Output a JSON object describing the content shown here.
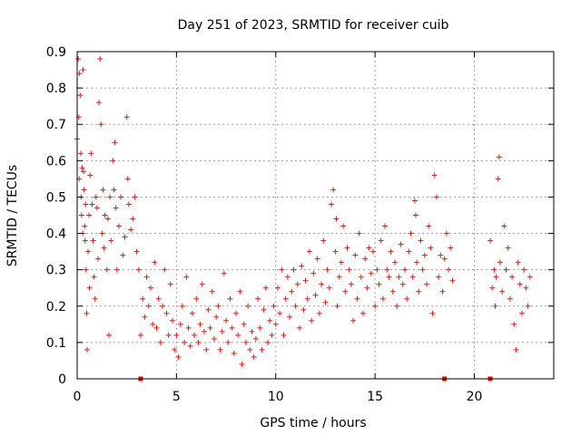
{
  "colors": {
    "points": "#ee1111",
    "gap_markers": "#dd0000",
    "grid": "#a0a0a0",
    "frame": "#000000"
  },
  "chart_data": {
    "type": "scatter",
    "title": "Day 251 of 2023, SRMTID for receiver cuib",
    "xlabel": "GPS time / hours",
    "ylabel": "SRMTID / TECUs",
    "xlim": [
      0,
      24
    ],
    "ylim": [
      0,
      0.9
    ],
    "xticks": [
      0,
      5,
      10,
      15,
      20
    ],
    "xtick_labels": [
      "0",
      "5",
      "10",
      "15",
      "20"
    ],
    "yticks": [
      0,
      0.1,
      0.2,
      0.3,
      0.4,
      0.5,
      0.6,
      0.7,
      0.8,
      0.9
    ],
    "ytick_labels": [
      "0",
      "0.1",
      "0.2",
      "0.3",
      "0.4",
      "0.5",
      "0.6",
      "0.7",
      "0.8",
      "0.9"
    ],
    "grid": true,
    "marker": "plus",
    "gap_markers_x": [
      3.2,
      18.5,
      20.8
    ],
    "series": [
      {
        "name": "SRMTID",
        "points": [
          [
            0.0,
            0.66
          ],
          [
            0.05,
            0.88
          ],
          [
            0.08,
            0.72
          ],
          [
            0.1,
            0.55
          ],
          [
            0.12,
            0.84
          ],
          [
            0.15,
            0.78
          ],
          [
            0.18,
            0.62
          ],
          [
            0.2,
            0.5
          ],
          [
            0.22,
            0.45
          ],
          [
            0.25,
            0.58
          ],
          [
            0.28,
            0.4
          ],
          [
            0.3,
            0.85
          ],
          [
            0.32,
            0.57
          ],
          [
            0.35,
            0.52
          ],
          [
            0.38,
            0.42
          ],
          [
            0.4,
            0.38
          ],
          [
            0.42,
            0.48
          ],
          [
            0.45,
            0.3
          ],
          [
            0.48,
            0.18
          ],
          [
            0.5,
            0.08
          ],
          [
            0.55,
            0.35
          ],
          [
            0.6,
            0.45
          ],
          [
            0.62,
            0.25
          ],
          [
            0.65,
            0.56
          ],
          [
            0.7,
            0.62
          ],
          [
            0.75,
            0.48
          ],
          [
            0.8,
            0.38
          ],
          [
            0.85,
            0.28
          ],
          [
            0.9,
            0.22
          ],
          [
            0.95,
            0.5
          ],
          [
            1.0,
            0.47
          ],
          [
            1.05,
            0.33
          ],
          [
            1.1,
            0.76
          ],
          [
            1.15,
            0.88
          ],
          [
            1.2,
            0.7
          ],
          [
            1.25,
            0.4
          ],
          [
            1.3,
            0.52
          ],
          [
            1.35,
            0.36
          ],
          [
            1.4,
            0.45
          ],
          [
            1.5,
            0.3
          ],
          [
            1.55,
            0.44
          ],
          [
            1.6,
            0.12
          ],
          [
            1.65,
            0.5
          ],
          [
            1.7,
            0.38
          ],
          [
            1.8,
            0.6
          ],
          [
            1.85,
            0.52
          ],
          [
            1.9,
            0.65
          ],
          [
            1.95,
            0.47
          ],
          [
            2.0,
            0.3
          ],
          [
            2.1,
            0.42
          ],
          [
            2.2,
            0.5
          ],
          [
            2.3,
            0.34
          ],
          [
            2.4,
            0.39
          ],
          [
            2.5,
            0.72
          ],
          [
            2.55,
            0.55
          ],
          [
            2.6,
            0.48
          ],
          [
            2.7,
            0.41
          ],
          [
            2.8,
            0.44
          ],
          [
            2.9,
            0.5
          ],
          [
            3.0,
            0.35
          ],
          [
            3.1,
            0.3
          ],
          [
            3.2,
            0.12
          ],
          [
            3.3,
            0.22
          ],
          [
            3.4,
            0.17
          ],
          [
            3.5,
            0.28
          ],
          [
            3.6,
            0.2
          ],
          [
            3.7,
            0.25
          ],
          [
            3.8,
            0.15
          ],
          [
            3.9,
            0.32
          ],
          [
            4.0,
            0.14
          ],
          [
            4.1,
            0.22
          ],
          [
            4.2,
            0.1
          ],
          [
            4.3,
            0.2
          ],
          [
            4.4,
            0.3
          ],
          [
            4.5,
            0.18
          ],
          [
            4.6,
            0.12
          ],
          [
            4.7,
            0.26
          ],
          [
            4.8,
            0.16
          ],
          [
            4.9,
            0.08
          ],
          [
            5.0,
            0.12
          ],
          [
            5.1,
            0.06
          ],
          [
            5.2,
            0.15
          ],
          [
            5.3,
            0.2
          ],
          [
            5.4,
            0.1
          ],
          [
            5.5,
            0.28
          ],
          [
            5.6,
            0.14
          ],
          [
            5.7,
            0.09
          ],
          [
            5.8,
            0.18
          ],
          [
            5.9,
            0.12
          ],
          [
            6.0,
            0.22
          ],
          [
            6.1,
            0.1
          ],
          [
            6.2,
            0.15
          ],
          [
            6.3,
            0.26
          ],
          [
            6.4,
            0.13
          ],
          [
            6.5,
            0.08
          ],
          [
            6.6,
            0.19
          ],
          [
            6.7,
            0.14
          ],
          [
            6.8,
            0.24
          ],
          [
            6.9,
            0.11
          ],
          [
            7.0,
            0.17
          ],
          [
            7.1,
            0.2
          ],
          [
            7.2,
            0.08
          ],
          [
            7.3,
            0.13
          ],
          [
            7.4,
            0.29
          ],
          [
            7.5,
            0.16
          ],
          [
            7.6,
            0.1
          ],
          [
            7.7,
            0.22
          ],
          [
            7.8,
            0.14
          ],
          [
            7.9,
            0.07
          ],
          [
            8.0,
            0.18
          ],
          [
            8.1,
            0.12
          ],
          [
            8.2,
            0.24
          ],
          [
            8.3,
            0.04
          ],
          [
            8.4,
            0.15
          ],
          [
            8.5,
            0.1
          ],
          [
            8.6,
            0.2
          ],
          [
            8.7,
            0.08
          ],
          [
            8.8,
            0.13
          ],
          [
            8.9,
            0.06
          ],
          [
            9.0,
            0.11
          ],
          [
            9.1,
            0.22
          ],
          [
            9.2,
            0.14
          ],
          [
            9.3,
            0.08
          ],
          [
            9.4,
            0.19
          ],
          [
            9.5,
            0.25
          ],
          [
            9.6,
            0.1
          ],
          [
            9.7,
            0.16
          ],
          [
            9.8,
            0.12
          ],
          [
            9.9,
            0.2
          ],
          [
            10.0,
            0.15
          ],
          [
            10.1,
            0.25
          ],
          [
            10.2,
            0.18
          ],
          [
            10.3,
            0.3
          ],
          [
            10.4,
            0.12
          ],
          [
            10.5,
            0.22
          ],
          [
            10.6,
            0.28
          ],
          [
            10.7,
            0.17
          ],
          [
            10.8,
            0.24
          ],
          [
            10.9,
            0.3
          ],
          [
            11.0,
            0.2
          ],
          [
            11.1,
            0.26
          ],
          [
            11.2,
            0.14
          ],
          [
            11.3,
            0.31
          ],
          [
            11.4,
            0.19
          ],
          [
            11.5,
            0.27
          ],
          [
            11.6,
            0.22
          ],
          [
            11.7,
            0.35
          ],
          [
            11.8,
            0.16
          ],
          [
            11.9,
            0.29
          ],
          [
            12.0,
            0.23
          ],
          [
            12.1,
            0.33
          ],
          [
            12.2,
            0.18
          ],
          [
            12.3,
            0.26
          ],
          [
            12.4,
            0.38
          ],
          [
            12.5,
            0.21
          ],
          [
            12.6,
            0.3
          ],
          [
            12.7,
            0.25
          ],
          [
            12.8,
            0.48
          ],
          [
            12.9,
            0.52
          ],
          [
            13.0,
            0.35
          ],
          [
            13.05,
            0.44
          ],
          [
            13.1,
            0.2
          ],
          [
            13.2,
            0.28
          ],
          [
            13.3,
            0.32
          ],
          [
            13.4,
            0.42
          ],
          [
            13.5,
            0.24
          ],
          [
            13.6,
            0.36
          ],
          [
            13.7,
            0.3
          ],
          [
            13.8,
            0.26
          ],
          [
            13.9,
            0.16
          ],
          [
            14.0,
            0.34
          ],
          [
            14.1,
            0.22
          ],
          [
            14.2,
            0.4
          ],
          [
            14.3,
            0.28
          ],
          [
            14.4,
            0.18
          ],
          [
            14.5,
            0.33
          ],
          [
            14.6,
            0.25
          ],
          [
            14.7,
            0.36
          ],
          [
            14.8,
            0.29
          ],
          [
            14.9,
            0.35
          ],
          [
            15.0,
            0.2
          ],
          [
            15.1,
            0.3
          ],
          [
            15.2,
            0.26
          ],
          [
            15.3,
            0.38
          ],
          [
            15.4,
            0.22
          ],
          [
            15.5,
            0.42
          ],
          [
            15.6,
            0.3
          ],
          [
            15.7,
            0.28
          ],
          [
            15.8,
            0.35
          ],
          [
            15.9,
            0.24
          ],
          [
            16.0,
            0.32
          ],
          [
            16.1,
            0.2
          ],
          [
            16.2,
            0.28
          ],
          [
            16.3,
            0.37
          ],
          [
            16.4,
            0.26
          ],
          [
            16.5,
            0.3
          ],
          [
            16.6,
            0.22
          ],
          [
            16.7,
            0.35
          ],
          [
            16.8,
            0.4
          ],
          [
            16.9,
            0.28
          ],
          [
            17.0,
            0.49
          ],
          [
            17.05,
            0.45
          ],
          [
            17.1,
            0.32
          ],
          [
            17.2,
            0.24
          ],
          [
            17.3,
            0.38
          ],
          [
            17.4,
            0.3
          ],
          [
            17.5,
            0.34
          ],
          [
            17.6,
            0.26
          ],
          [
            17.7,
            0.42
          ],
          [
            17.8,
            0.36
          ],
          [
            17.9,
            0.18
          ],
          [
            18.0,
            0.56
          ],
          [
            18.1,
            0.5
          ],
          [
            18.2,
            0.28
          ],
          [
            18.3,
            0.34
          ],
          [
            18.4,
            0.24
          ],
          [
            18.5,
            0.33
          ],
          [
            18.6,
            0.4
          ],
          [
            18.7,
            0.3
          ],
          [
            18.8,
            0.36
          ],
          [
            18.9,
            0.27
          ],
          [
            20.8,
            0.38
          ],
          [
            20.9,
            0.25
          ],
          [
            21.0,
            0.3
          ],
          [
            21.05,
            0.2
          ],
          [
            21.1,
            0.28
          ],
          [
            21.2,
            0.55
          ],
          [
            21.25,
            0.61
          ],
          [
            21.3,
            0.32
          ],
          [
            21.4,
            0.24
          ],
          [
            21.5,
            0.42
          ],
          [
            21.6,
            0.3
          ],
          [
            21.7,
            0.36
          ],
          [
            21.8,
            0.22
          ],
          [
            21.9,
            0.28
          ],
          [
            22.0,
            0.15
          ],
          [
            22.1,
            0.08
          ],
          [
            22.2,
            0.32
          ],
          [
            22.3,
            0.26
          ],
          [
            22.4,
            0.18
          ],
          [
            22.5,
            0.3
          ],
          [
            22.6,
            0.25
          ],
          [
            22.7,
            0.2
          ],
          [
            22.8,
            0.28
          ]
        ]
      }
    ]
  }
}
